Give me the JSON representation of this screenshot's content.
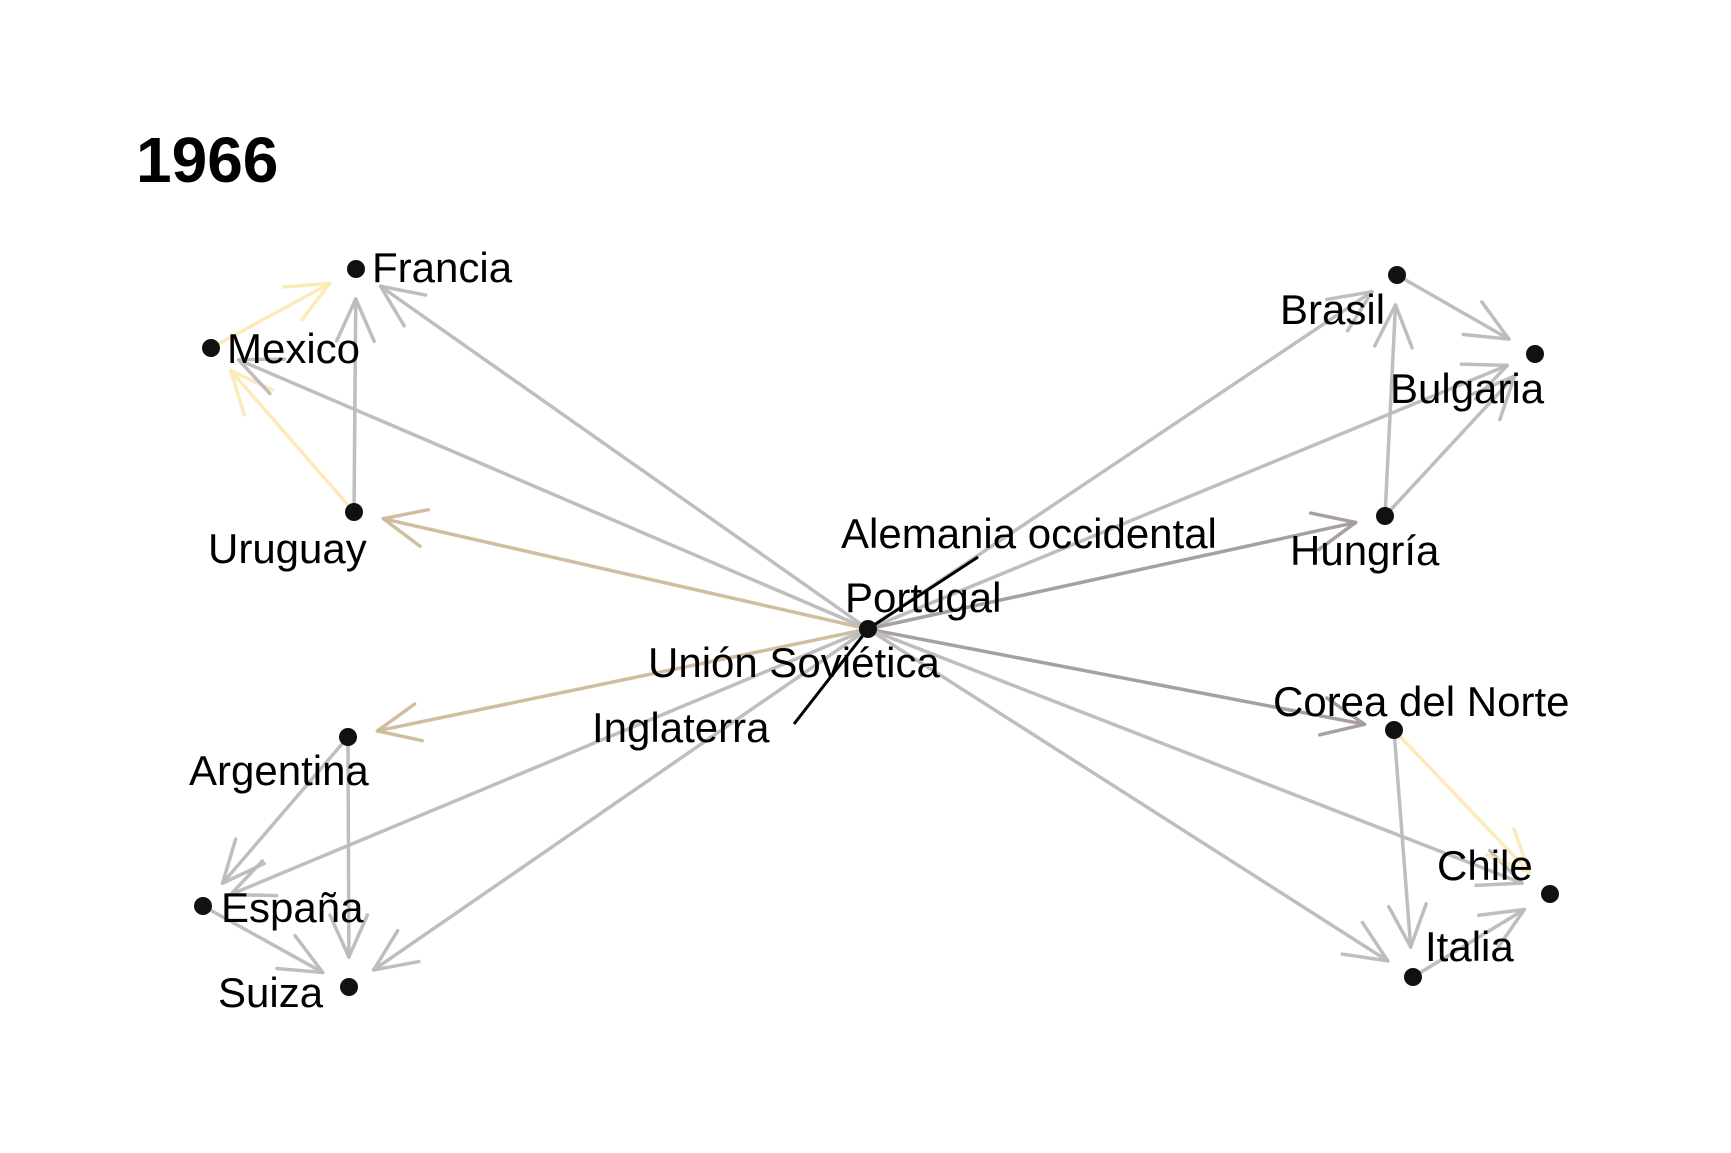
{
  "title": "1966",
  "colors": {
    "edge_gray": "#bdb9bc",
    "edge_dark": "#a39aa0",
    "edge_tan": "#cdbb9c",
    "edge_yellow": "#fde9b5",
    "node": "#111111",
    "background": "#ffffff"
  },
  "nodes": [
    {
      "id": "Francia",
      "label": "Francia"
    },
    {
      "id": "Mexico",
      "label": "Mexico"
    },
    {
      "id": "Uruguay",
      "label": "Uruguay"
    },
    {
      "id": "Brasil",
      "label": "Brasil"
    },
    {
      "id": "Bulgaria",
      "label": "Bulgaria"
    },
    {
      "id": "Hungria",
      "label": "Hungría"
    },
    {
      "id": "Center",
      "label": ""
    },
    {
      "id": "Alemania",
      "label": "Alemania occidental"
    },
    {
      "id": "Portugal",
      "label": "Portugal"
    },
    {
      "id": "URSS",
      "label": "Unión Soviética"
    },
    {
      "id": "Inglaterra",
      "label": "Inglaterra"
    },
    {
      "id": "Argentina",
      "label": "Argentina"
    },
    {
      "id": "Espana",
      "label": "España"
    },
    {
      "id": "Suiza",
      "label": "Suiza"
    },
    {
      "id": "Corea",
      "label": "Corea del Norte"
    },
    {
      "id": "Chile",
      "label": "Chile"
    },
    {
      "id": "Italia",
      "label": "Italia"
    }
  ],
  "edges": [
    {
      "from": "Uruguay",
      "to": "Francia",
      "color": "edge_gray"
    },
    {
      "from": "Uruguay",
      "to": "Mexico",
      "color": "edge_yellow"
    },
    {
      "from": "Mexico",
      "to": "Francia",
      "color": "edge_yellow"
    },
    {
      "from": "Center",
      "to": "Francia",
      "color": "edge_gray"
    },
    {
      "from": "Center",
      "to": "Mexico",
      "color": "edge_gray"
    },
    {
      "from": "Center",
      "to": "Uruguay",
      "color": "edge_tan"
    },
    {
      "from": "Center",
      "to": "Argentina",
      "color": "edge_tan"
    },
    {
      "from": "Center",
      "to": "Espana",
      "color": "edge_gray"
    },
    {
      "from": "Center",
      "to": "Suiza",
      "color": "edge_gray"
    },
    {
      "from": "Center",
      "to": "Brasil",
      "color": "edge_gray"
    },
    {
      "from": "Center",
      "to": "Bulgaria",
      "color": "edge_gray"
    },
    {
      "from": "Center",
      "to": "Hungria",
      "color": "edge_dark"
    },
    {
      "from": "Center",
      "to": "Corea",
      "color": "edge_dark"
    },
    {
      "from": "Center",
      "to": "Chile",
      "color": "edge_gray"
    },
    {
      "from": "Center",
      "to": "Italia",
      "color": "edge_gray"
    },
    {
      "from": "Brasil",
      "to": "Bulgaria",
      "color": "edge_gray"
    },
    {
      "from": "Hungria",
      "to": "Brasil",
      "color": "edge_gray"
    },
    {
      "from": "Hungria",
      "to": "Bulgaria",
      "color": "edge_gray"
    },
    {
      "from": "Argentina",
      "to": "Espana",
      "color": "edge_gray"
    },
    {
      "from": "Argentina",
      "to": "Suiza",
      "color": "edge_gray"
    },
    {
      "from": "Espana",
      "to": "Suiza",
      "color": "edge_gray"
    },
    {
      "from": "Corea",
      "to": "Chile",
      "color": "edge_yellow"
    },
    {
      "from": "Corea",
      "to": "Italia",
      "color": "edge_gray"
    },
    {
      "from": "Italia",
      "to": "Chile",
      "color": "edge_gray"
    }
  ]
}
